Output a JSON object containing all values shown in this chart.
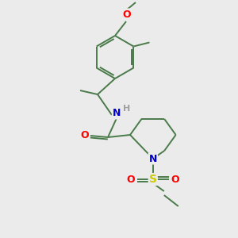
{
  "bg_color": "#ebebeb",
  "bond_color": "#4a7a4a",
  "atom_colors": {
    "O": "#ff0000",
    "N": "#0000cc",
    "S": "#cccc00",
    "H": "#a0a0a0",
    "C": "#4a7a4a"
  },
  "figsize": [
    3.0,
    3.0
  ],
  "dpi": 100
}
